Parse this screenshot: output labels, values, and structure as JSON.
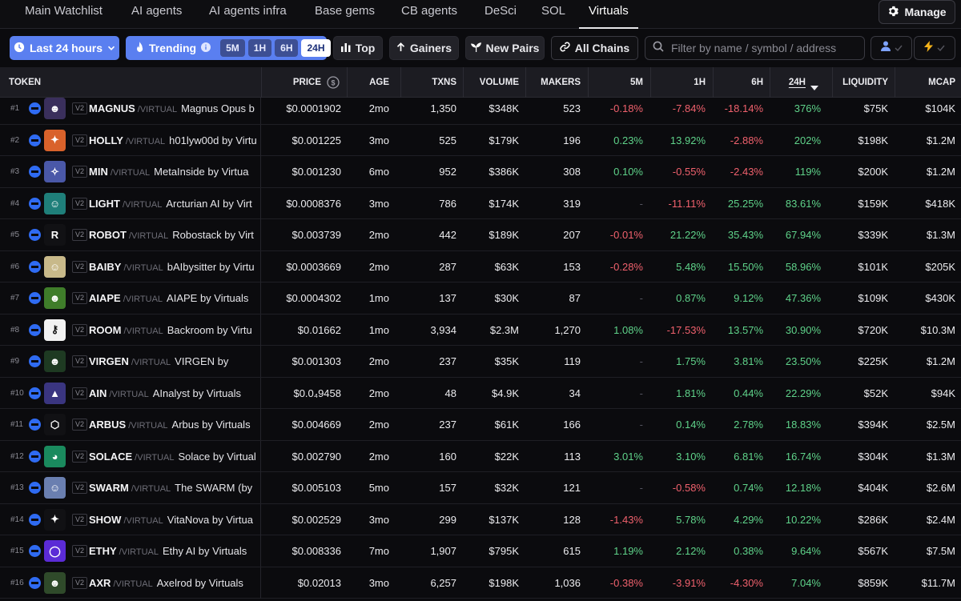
{
  "tabs": [
    "Main Watchlist",
    "AI agents",
    "AI agents infra",
    "Base gems",
    "CB agents",
    "DeSci",
    "SOL",
    "Virtuals"
  ],
  "active_tab": "Virtuals",
  "manage_label": "Manage",
  "filters": {
    "timeframe_label": "Last 24 hours",
    "trending_label": "Trending",
    "trending_intervals": [
      "5M",
      "1H",
      "6H",
      "24H"
    ],
    "active_interval": "24H",
    "top_label": "Top",
    "gainers_label": "Gainers",
    "new_pairs_label": "New Pairs",
    "all_chains_label": "All Chains",
    "search_placeholder": "Filter by name / symbol / address"
  },
  "columns": {
    "token": "TOKEN",
    "price": "PRICE",
    "age": "AGE",
    "txns": "TXNS",
    "volume": "VOLUME",
    "makers": "MAKERS",
    "m5": "5M",
    "h1": "1H",
    "h6": "6H",
    "h24": "24H",
    "liquidity": "LIQUIDITY",
    "mcap": "MCAP"
  },
  "colors": {
    "positive": "#5fd38a",
    "negative": "#f0616d",
    "accent": "#5a7ff0"
  },
  "rows": [
    {
      "rank": "#1",
      "version": "V2",
      "symbol": "MAGNUS",
      "quote": "/VIRTUAL",
      "name": "Magnus Opus b",
      "price": "$0.0001902",
      "age": "2mo",
      "txns": "1,350",
      "volume": "$348K",
      "makers": "523",
      "m5": "-0.18%",
      "h1": "-7.84%",
      "h6": "-18.14%",
      "h24": "376%",
      "liquidity": "$75K",
      "mcap": "$104K",
      "avatar_color": "#3a2f5c",
      "avatar_glyph": "☻"
    },
    {
      "rank": "#2",
      "version": "V2",
      "symbol": "HOLLY",
      "quote": "/VIRTUAL",
      "name": "h01lyw00d by Virtu",
      "price": "$0.001225",
      "age": "3mo",
      "txns": "525",
      "volume": "$179K",
      "makers": "196",
      "m5": "0.23%",
      "h1": "13.92%",
      "h6": "-2.88%",
      "h24": "202%",
      "liquidity": "$198K",
      "mcap": "$1.2M",
      "avatar_color": "#d9622b",
      "avatar_glyph": "✦"
    },
    {
      "rank": "#3",
      "version": "V2",
      "symbol": "MIN",
      "quote": "/VIRTUAL",
      "name": "MetaInside by Virtua",
      "price": "$0.001230",
      "age": "6mo",
      "txns": "952",
      "volume": "$386K",
      "makers": "308",
      "m5": "0.10%",
      "h1": "-0.55%",
      "h6": "-2.43%",
      "h24": "119%",
      "liquidity": "$200K",
      "mcap": "$1.2M",
      "avatar_color": "#4a58a8",
      "avatar_glyph": "✧"
    },
    {
      "rank": "#4",
      "version": "V2",
      "symbol": "LIGHT",
      "quote": "/VIRTUAL",
      "name": "Arcturian AI by Virt",
      "price": "$0.0008376",
      "age": "3mo",
      "txns": "786",
      "volume": "$174K",
      "makers": "319",
      "m5": "-",
      "h1": "-11.11%",
      "h6": "25.25%",
      "h24": "83.61%",
      "liquidity": "$159K",
      "mcap": "$418K",
      "avatar_color": "#1f7f7a",
      "avatar_glyph": "☺"
    },
    {
      "rank": "#5",
      "version": "V2",
      "symbol": "ROBOT",
      "quote": "/VIRTUAL",
      "name": "Robostack by Virt",
      "price": "$0.003739",
      "age": "2mo",
      "txns": "442",
      "volume": "$189K",
      "makers": "207",
      "m5": "-0.01%",
      "h1": "21.22%",
      "h6": "35.43%",
      "h24": "67.94%",
      "liquidity": "$339K",
      "mcap": "$1.3M",
      "avatar_color": "#111114",
      "avatar_glyph": "R"
    },
    {
      "rank": "#6",
      "version": "V2",
      "symbol": "BAIBY",
      "quote": "/VIRTUAL",
      "name": "bAIbysitter by Virtu",
      "price": "$0.0003669",
      "age": "2mo",
      "txns": "287",
      "volume": "$63K",
      "makers": "153",
      "m5": "-0.28%",
      "h1": "5.48%",
      "h6": "15.50%",
      "h24": "58.96%",
      "liquidity": "$101K",
      "mcap": "$205K",
      "avatar_color": "#c8b98a",
      "avatar_glyph": "☺"
    },
    {
      "rank": "#7",
      "version": "V2",
      "symbol": "AIAPE",
      "quote": "/VIRTUAL",
      "name": "AIAPE by Virtuals",
      "price": "$0.0004302",
      "age": "1mo",
      "txns": "137",
      "volume": "$30K",
      "makers": "87",
      "m5": "-",
      "h1": "0.87%",
      "h6": "9.12%",
      "h24": "47.36%",
      "liquidity": "$109K",
      "mcap": "$430K",
      "avatar_color": "#3f7d2a",
      "avatar_glyph": "☻"
    },
    {
      "rank": "#8",
      "version": "V2",
      "symbol": "ROOM",
      "quote": "/VIRTUAL",
      "name": "Backroom by Virtu",
      "price": "$0.01662",
      "age": "1mo",
      "txns": "3,934",
      "volume": "$2.3M",
      "makers": "1,270",
      "m5": "1.08%",
      "h1": "-17.53%",
      "h6": "13.57%",
      "h24": "30.90%",
      "liquidity": "$720K",
      "mcap": "$10.3M",
      "avatar_color": "#f2f2f2",
      "avatar_glyph": "⚷"
    },
    {
      "rank": "#9",
      "version": "V2",
      "symbol": "VIRGEN",
      "quote": "/VIRTUAL",
      "name": "VIRGEN by Virtual",
      "price": "$0.001303",
      "age": "2mo",
      "txns": "237",
      "volume": "$35K",
      "makers": "119",
      "m5": "-",
      "h1": "1.75%",
      "h6": "3.81%",
      "h24": "23.50%",
      "liquidity": "$225K",
      "mcap": "$1.2M",
      "avatar_color": "#1e3a22",
      "avatar_glyph": "☻"
    },
    {
      "rank": "#10",
      "version": "V2",
      "symbol": "AIN",
      "quote": "/VIRTUAL",
      "name": "AInalyst by Virtuals",
      "price": "$0.0₄9458",
      "age": "2mo",
      "txns": "48",
      "volume": "$4.9K",
      "makers": "34",
      "m5": "-",
      "h1": "1.81%",
      "h6": "0.44%",
      "h24": "22.29%",
      "liquidity": "$52K",
      "mcap": "$94K",
      "avatar_color": "#3a3580",
      "avatar_glyph": "▲"
    },
    {
      "rank": "#11",
      "version": "V2",
      "symbol": "ARBUS",
      "quote": "/VIRTUAL",
      "name": "Arbus by Virtuals",
      "price": "$0.004669",
      "age": "2mo",
      "txns": "237",
      "volume": "$61K",
      "makers": "166",
      "m5": "-",
      "h1": "0.14%",
      "h6": "2.78%",
      "h24": "18.83%",
      "liquidity": "$394K",
      "mcap": "$2.5M",
      "avatar_color": "#111114",
      "avatar_glyph": "⬡"
    },
    {
      "rank": "#12",
      "version": "V2",
      "symbol": "SOLACE",
      "quote": "/VIRTUAL",
      "name": "Solace by Virtual",
      "price": "$0.002790",
      "age": "2mo",
      "txns": "160",
      "volume": "$22K",
      "makers": "113",
      "m5": "3.01%",
      "h1": "3.10%",
      "h6": "6.81%",
      "h24": "16.74%",
      "liquidity": "$304K",
      "mcap": "$1.3M",
      "avatar_color": "#1a8a5e",
      "avatar_glyph": "◕"
    },
    {
      "rank": "#13",
      "version": "V2",
      "symbol": "SWARM",
      "quote": "/VIRTUAL",
      "name": "The SWARM (by S",
      "price": "$0.005103",
      "age": "5mo",
      "txns": "157",
      "volume": "$32K",
      "makers": "121",
      "m5": "-",
      "h1": "-0.58%",
      "h6": "0.74%",
      "h24": "12.18%",
      "liquidity": "$404K",
      "mcap": "$2.6M",
      "avatar_color": "#6a7fb0",
      "avatar_glyph": "☺"
    },
    {
      "rank": "#14",
      "version": "V2",
      "symbol": "SHOW",
      "quote": "/VIRTUAL",
      "name": "VitaNova by Virtua",
      "price": "$0.002529",
      "age": "3mo",
      "txns": "299",
      "volume": "$137K",
      "makers": "128",
      "m5": "-1.43%",
      "h1": "5.78%",
      "h6": "4.29%",
      "h24": "10.22%",
      "liquidity": "$286K",
      "mcap": "$2.4M",
      "avatar_color": "#111114",
      "avatar_glyph": "✦"
    },
    {
      "rank": "#15",
      "version": "V2",
      "symbol": "ETHY",
      "quote": "/VIRTUAL",
      "name": "Ethy AI by Virtuals",
      "price": "$0.008336",
      "age": "7mo",
      "txns": "1,907",
      "volume": "$795K",
      "makers": "615",
      "m5": "1.19%",
      "h1": "2.12%",
      "h6": "0.38%",
      "h24": "9.64%",
      "liquidity": "$567K",
      "mcap": "$7.5M",
      "avatar_color": "#5b2bd6",
      "avatar_glyph": "◯"
    },
    {
      "rank": "#16",
      "version": "V2",
      "symbol": "AXR",
      "quote": "/VIRTUAL",
      "name": "Axelrod by Virtuals",
      "price": "$0.02013",
      "age": "3mo",
      "txns": "6,257",
      "volume": "$198K",
      "makers": "1,036",
      "m5": "-0.38%",
      "h1": "-3.91%",
      "h6": "-4.30%",
      "h24": "7.04%",
      "liquidity": "$859K",
      "mcap": "$11.7M",
      "avatar_color": "#2f4a2a",
      "avatar_glyph": "☻"
    }
  ]
}
